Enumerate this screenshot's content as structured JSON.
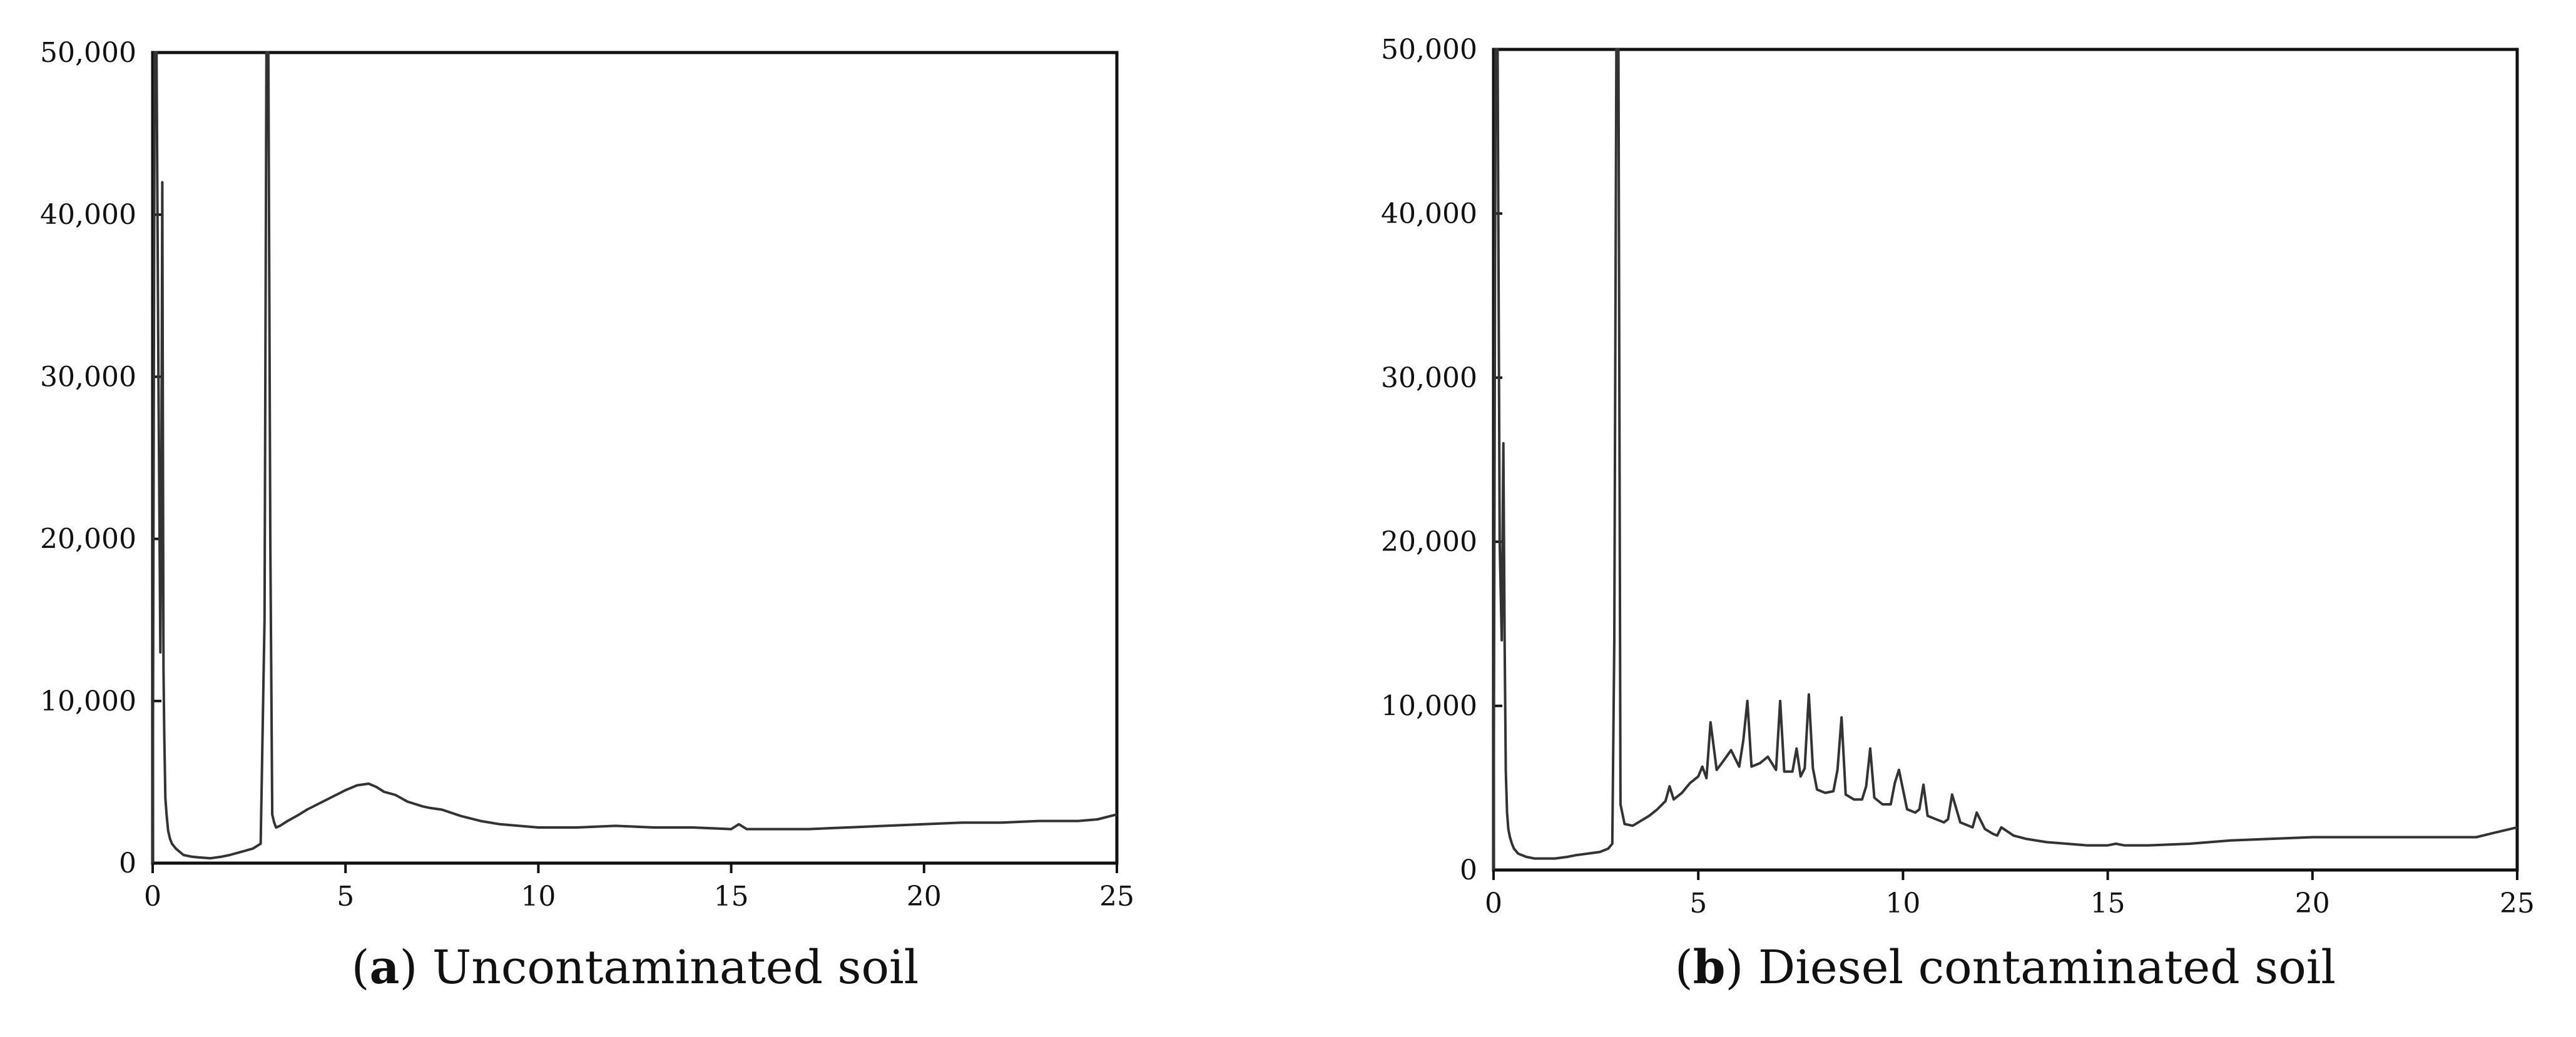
{
  "chart_data": [
    {
      "id": "a",
      "type": "line",
      "caption_letter": "a",
      "caption_text": ") Uncontaminated soil",
      "xlim": [
        0,
        25
      ],
      "ylim": [
        0,
        50000
      ],
      "xticks": [
        0,
        5,
        10,
        15,
        20,
        25
      ],
      "yticks": [
        0,
        10000,
        20000,
        30000,
        40000,
        50000
      ],
      "xtick_labels": [
        "0",
        "5",
        "10",
        "15",
        "20",
        "25"
      ],
      "ytick_labels": [
        "0",
        "10,000",
        "20,000",
        "30,000",
        "40,000",
        "50,000"
      ],
      "series": [
        {
          "x": [
            0.0,
            0.05,
            0.1,
            0.15,
            0.2,
            0.22,
            0.25,
            0.28,
            0.3,
            0.33,
            0.36,
            0.4,
            0.45,
            0.5,
            0.6,
            0.7,
            0.8,
            1.0,
            1.2,
            1.5,
            1.8,
            2.0,
            2.3,
            2.6,
            2.8,
            2.9,
            2.95,
            3.0,
            3.05,
            3.1,
            3.15,
            3.2,
            3.3,
            3.5,
            3.8,
            4.0,
            4.5,
            5.0,
            5.3,
            5.6,
            5.8,
            6.0,
            6.3,
            6.6,
            7.0,
            7.2,
            7.5,
            8.0,
            8.5,
            9.0,
            9.5,
            10.0,
            11.0,
            12.0,
            13.0,
            14.0,
            15.0,
            15.2,
            15.4,
            16.0,
            17.0,
            18.0,
            19.0,
            20.0,
            21.0,
            22.0,
            23.0,
            24.0,
            24.5,
            25.0
          ],
          "y": [
            0,
            50000,
            50000,
            30000,
            13000,
            20000,
            42000,
            12000,
            8000,
            4000,
            3000,
            2000,
            1500,
            1200,
            900,
            700,
            500,
            400,
            350,
            300,
            400,
            500,
            700,
            900,
            1200,
            15000,
            50000,
            50000,
            20000,
            3000,
            2500,
            2200,
            2300,
            2600,
            3000,
            3300,
            3900,
            4500,
            4800,
            4900,
            4700,
            4400,
            4200,
            3800,
            3500,
            3400,
            3300,
            2900,
            2600,
            2400,
            2300,
            2200,
            2200,
            2300,
            2200,
            2200,
            2100,
            2400,
            2100,
            2100,
            2100,
            2200,
            2300,
            2400,
            2500,
            2500,
            2600,
            2600,
            2700,
            3000
          ]
        }
      ]
    },
    {
      "id": "b",
      "type": "line",
      "caption_letter": "b",
      "caption_text": ") Diesel contaminated soil",
      "xlim": [
        0,
        25
      ],
      "ylim": [
        0,
        50000
      ],
      "xticks": [
        0,
        5,
        10,
        15,
        20,
        25
      ],
      "yticks": [
        0,
        10000,
        20000,
        30000,
        40000,
        50000
      ],
      "xtick_labels": [
        "0",
        "5",
        "10",
        "15",
        "20",
        "25"
      ],
      "ytick_labels": [
        "0",
        "10,000",
        "20,000",
        "30,000",
        "40,000",
        "50,000"
      ],
      "series": [
        {
          "x": [
            0.0,
            0.05,
            0.1,
            0.15,
            0.2,
            0.24,
            0.27,
            0.3,
            0.33,
            0.36,
            0.4,
            0.45,
            0.5,
            0.6,
            0.7,
            0.8,
            1.0,
            1.2,
            1.5,
            1.8,
            2.0,
            2.3,
            2.6,
            2.8,
            2.9,
            2.95,
            3.0,
            3.05,
            3.1,
            3.2,
            3.4,
            3.6,
            3.8,
            4.0,
            4.2,
            4.3,
            4.4,
            4.6,
            4.8,
            5.0,
            5.1,
            5.2,
            5.3,
            5.45,
            5.6,
            5.8,
            6.0,
            6.1,
            6.2,
            6.3,
            6.5,
            6.7,
            6.9,
            7.0,
            7.1,
            7.3,
            7.4,
            7.5,
            7.6,
            7.7,
            7.8,
            7.9,
            8.1,
            8.3,
            8.4,
            8.5,
            8.6,
            8.8,
            9.0,
            9.1,
            9.2,
            9.3,
            9.5,
            9.7,
            9.8,
            9.9,
            10.1,
            10.3,
            10.4,
            10.5,
            10.6,
            10.8,
            11.0,
            11.1,
            11.2,
            11.4,
            11.6,
            11.7,
            11.8,
            12.0,
            12.2,
            12.3,
            12.4,
            12.7,
            13.0,
            13.5,
            14.0,
            14.5,
            15.0,
            15.2,
            15.4,
            16.0,
            17.0,
            18.0,
            19.0,
            20.0,
            21.0,
            22.0,
            23.0,
            24.0,
            24.5,
            25.0
          ],
          "y": [
            0,
            50000,
            50000,
            20000,
            14000,
            26000,
            14000,
            6000,
            3500,
            2500,
            2000,
            1600,
            1300,
            1000,
            900,
            800,
            700,
            700,
            700,
            800,
            900,
            1000,
            1100,
            1300,
            1600,
            14000,
            50000,
            50000,
            4000,
            2800,
            2700,
            3000,
            3300,
            3700,
            4200,
            5100,
            4300,
            4700,
            5300,
            5700,
            6300,
            5600,
            9000,
            6100,
            6600,
            7300,
            6300,
            7900,
            10300,
            6300,
            6500,
            6900,
            6100,
            10300,
            6000,
            6000,
            7400,
            5700,
            6200,
            10700,
            6200,
            4900,
            4700,
            4800,
            6100,
            9300,
            4600,
            4300,
            4300,
            5100,
            7400,
            4400,
            4000,
            4000,
            5300,
            6100,
            3700,
            3500,
            3700,
            5200,
            3300,
            3100,
            2900,
            3100,
            4600,
            2900,
            2700,
            2600,
            3500,
            2500,
            2200,
            2100,
            2600,
            2100,
            1900,
            1700,
            1600,
            1500,
            1500,
            1600,
            1500,
            1500,
            1600,
            1800,
            1900,
            2000,
            2000,
            2000,
            2000,
            2000,
            2300,
            2600
          ]
        }
      ]
    }
  ]
}
